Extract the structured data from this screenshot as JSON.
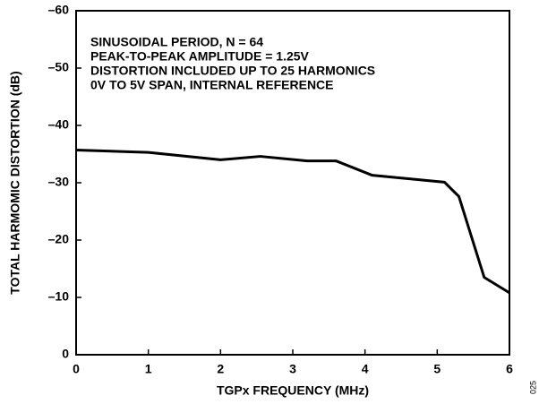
{
  "chart_data": {
    "type": "line",
    "xlabel": "TGPx FREQUENCY (MHz)",
    "ylabel": "TOTAL HARMOMIC DISTORTION (dB)",
    "annotations": [
      "SINUSOIDAL PERIOD, N = 64",
      "PEAK-TO-PEAK AMPLITUDE = 1.25V",
      "DISTORTION INCLUDED UP TO 25 HARMONICS",
      "0V TO 5V SPAN, INTERNAL REFERENCE"
    ],
    "figure_id": "025",
    "x": [
      0,
      1,
      2,
      2.55,
      3.2,
      3.6,
      4.1,
      5.1,
      5.3,
      5.65,
      6
    ],
    "values": [
      -35.7,
      -35.3,
      -34,
      -34.6,
      -33.8,
      -33.8,
      -31.3,
      -30.1,
      -27.6,
      -13.5,
      -10.8
    ],
    "color": "#000000",
    "xlim": [
      0,
      6
    ],
    "xticks": [
      0,
      1,
      2,
      3,
      4,
      5,
      6
    ],
    "ylim": [
      0,
      -60
    ],
    "yticks": [
      0,
      {
        "value": -10,
        "label": "–10"
      },
      {
        "value": -20,
        "label": "–20"
      },
      {
        "value": -30,
        "label": "–30"
      },
      {
        "value": -40,
        "label": "–40"
      },
      {
        "value": -50,
        "label": "–50"
      },
      {
        "value": -60,
        "label": "–60"
      }
    ],
    "grid": false
  }
}
